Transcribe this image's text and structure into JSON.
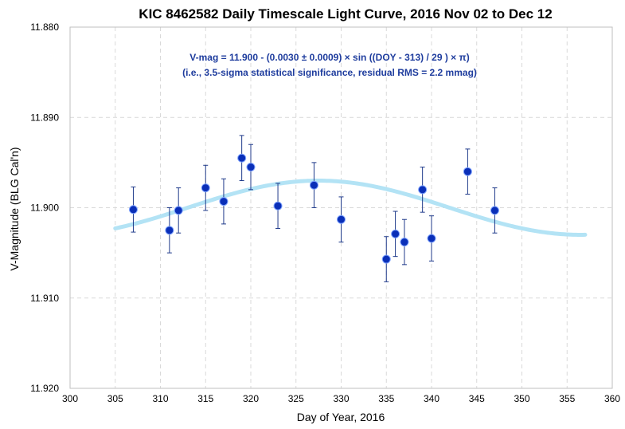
{
  "chart_data": {
    "type": "scatter",
    "title": "KIC 8462582 Daily Timescale Light Curve, 2016 Nov 02 to Dec 12",
    "xlabel": "Day of Year, 2016",
    "ylabel": "V-Magnitude (BLG Cal'n)",
    "xlim": [
      300,
      360
    ],
    "ylim": [
      11.88,
      11.92
    ],
    "y_inverted": true,
    "grid": true,
    "x_ticks": [
      "300",
      "305",
      "310",
      "315",
      "320",
      "325",
      "330",
      "335",
      "340",
      "345",
      "350",
      "355",
      "360"
    ],
    "y_ticks": [
      "11.880",
      "11.890",
      "11.900",
      "11.910",
      "11.920"
    ],
    "annotations": [
      "V-mag = 11.900 - (0.0030 ± 0.0009) × sin ((DOY - 313) / 29 ) × π)",
      "(i.e., 3.5-sigma statistical significance, residual RMS = 2.2 mmag)"
    ],
    "series": [
      {
        "kind": "points_with_error_bars",
        "color": "#0a2fb8",
        "x": [
          307,
          311,
          312,
          315,
          317,
          319,
          320,
          323,
          327,
          330,
          335,
          336,
          337,
          339,
          340,
          344,
          347
        ],
        "y": [
          11.9002,
          11.9025,
          11.9003,
          11.8978,
          11.8993,
          11.8945,
          11.8955,
          11.8998,
          11.8975,
          11.9013,
          11.9057,
          11.9029,
          11.9038,
          11.898,
          11.9034,
          11.896,
          11.9003
        ],
        "err": [
          0.0025,
          0.0025,
          0.0025,
          0.0025,
          0.0025,
          0.0025,
          0.0025,
          0.0025,
          0.0025,
          0.0025,
          0.0025,
          0.0025,
          0.0025,
          0.0025,
          0.0025,
          0.0025,
          0.0025
        ]
      },
      {
        "kind": "fit_curve",
        "color": "#b3e3f5",
        "x_start": 305,
        "x_end": 357,
        "formula": {
          "offset": 11.9,
          "amplitude": 0.003,
          "t0": 313,
          "period_scale": 29
        }
      }
    ]
  }
}
